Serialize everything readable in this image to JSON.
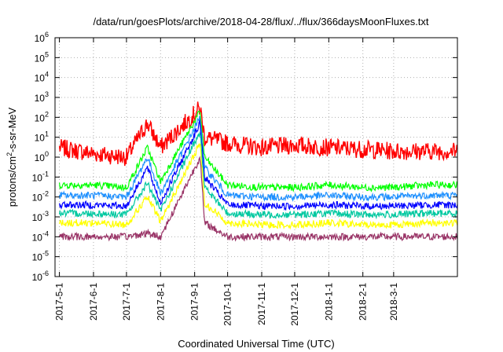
{
  "chart_data": {
    "type": "line",
    "title": "/data/run/goesPlots/archive/2018-04-28/flux/../flux/366daysMoonFluxes.txt",
    "xlabel": "Coordinated Universal Time (UTC)",
    "ylabel": "protons/cm²-s-sr-MeV",
    "ylabel_parts": {
      "main": "protons/cm",
      "sup": "2",
      "rest": "-s-sr-MeV"
    },
    "yscale": "log",
    "ylim": [
      1e-06,
      1000000.0
    ],
    "y_ticks": [
      {
        "base": "10",
        "exp": "-6"
      },
      {
        "base": "10",
        "exp": "-5"
      },
      {
        "base": "10",
        "exp": "-4"
      },
      {
        "base": "10",
        "exp": "-3"
      },
      {
        "base": "10",
        "exp": "-2"
      },
      {
        "base": "10",
        "exp": "-1"
      },
      {
        "base": "10",
        "exp": "0"
      },
      {
        "base": "10",
        "exp": "1"
      },
      {
        "base": "10",
        "exp": "2"
      },
      {
        "base": "10",
        "exp": "3"
      },
      {
        "base": "10",
        "exp": "4"
      },
      {
        "base": "10",
        "exp": "5"
      },
      {
        "base": "10",
        "exp": "6"
      }
    ],
    "xlim": [
      "2017-04-27",
      "2018-04-28"
    ],
    "x_ticks": [
      "2017-5-1",
      "2017-6-1",
      "2017-7-1",
      "2017-8-1",
      "2017-9-1",
      "2017-10-1",
      "2017-11-1",
      "2017-12-1",
      "2018-1-1",
      "2018-2-1",
      "2018-3-1"
    ],
    "grid": true,
    "series": [
      {
        "color": "#ff0000",
        "x": [
          "2017-05-01",
          "2017-06-01",
          "2017-07-01",
          "2017-07-20",
          "2017-08-01",
          "2017-09-06",
          "2017-09-10",
          "2017-10-01",
          "2017-11-01",
          "2017-12-01",
          "2018-01-01",
          "2018-02-01",
          "2018-03-01",
          "2018-04-01",
          "2018-04-28"
        ],
        "y": [
          3,
          1.5,
          1,
          50,
          3,
          300,
          10,
          5,
          3,
          4,
          3,
          2.5,
          2,
          2,
          2
        ]
      },
      {
        "color": "#00ff00",
        "x": [
          "2017-05-01",
          "2017-06-01",
          "2017-07-01",
          "2017-07-20",
          "2017-08-01",
          "2017-09-06",
          "2017-09-10",
          "2017-10-01",
          "2017-11-01",
          "2017-12-01",
          "2018-01-01",
          "2018-02-01",
          "2018-03-01",
          "2018-04-01",
          "2018-04-28"
        ],
        "y": [
          0.04,
          0.04,
          0.03,
          3,
          0.06,
          200,
          1,
          0.04,
          0.03,
          0.03,
          0.04,
          0.03,
          0.03,
          0.04,
          0.04
        ]
      },
      {
        "color": "#1e90ff",
        "x": [
          "2017-05-01",
          "2017-06-01",
          "2017-07-01",
          "2017-07-20",
          "2017-08-01",
          "2017-09-06",
          "2017-09-10",
          "2017-10-01",
          "2017-11-01",
          "2017-12-01",
          "2018-01-01",
          "2018-02-01",
          "2018-03-01",
          "2018-04-01",
          "2018-04-28"
        ],
        "y": [
          0.012,
          0.012,
          0.01,
          1,
          0.015,
          100,
          0.3,
          0.012,
          0.01,
          0.01,
          0.012,
          0.01,
          0.01,
          0.012,
          0.012
        ]
      },
      {
        "color": "#0000ff",
        "x": [
          "2017-05-01",
          "2017-06-01",
          "2017-07-01",
          "2017-07-20",
          "2017-08-01",
          "2017-09-06",
          "2017-09-10",
          "2017-10-01",
          "2017-11-01",
          "2017-12-01",
          "2018-01-01",
          "2018-02-01",
          "2018-03-01",
          "2018-04-01",
          "2018-04-28"
        ],
        "y": [
          0.004,
          0.004,
          0.0035,
          0.3,
          0.005,
          50,
          0.1,
          0.004,
          0.0035,
          0.0035,
          0.004,
          0.0035,
          0.0035,
          0.004,
          0.004
        ]
      },
      {
        "color": "#00c8a0",
        "x": [
          "2017-05-01",
          "2017-06-01",
          "2017-07-01",
          "2017-07-20",
          "2017-08-01",
          "2017-09-06",
          "2017-09-10",
          "2017-10-01",
          "2017-11-01",
          "2017-12-01",
          "2018-01-01",
          "2018-02-01",
          "2018-03-01",
          "2018-04-01",
          "2018-04-28"
        ],
        "y": [
          0.0015,
          0.0015,
          0.0013,
          0.05,
          0.002,
          20,
          0.03,
          0.0015,
          0.0013,
          0.0013,
          0.0015,
          0.0013,
          0.0013,
          0.0015,
          0.0015
        ]
      },
      {
        "color": "#ffff00",
        "x": [
          "2017-05-01",
          "2017-06-01",
          "2017-07-01",
          "2017-07-20",
          "2017-08-01",
          "2017-09-06",
          "2017-09-10",
          "2017-10-01",
          "2017-11-01",
          "2017-12-01",
          "2018-01-01",
          "2018-02-01",
          "2018-03-01",
          "2018-04-01",
          "2018-04-28"
        ],
        "y": [
          0.0005,
          0.0005,
          0.0004,
          0.01,
          0.0006,
          5,
          0.005,
          0.0005,
          0.0004,
          0.0004,
          0.0005,
          0.0004,
          0.0004,
          0.0005,
          0.0005
        ]
      },
      {
        "color": "#993366",
        "x": [
          "2017-05-01",
          "2017-06-01",
          "2017-07-01",
          "2017-07-20",
          "2017-08-01",
          "2017-09-06",
          "2017-09-10",
          "2017-10-01",
          "2017-11-01",
          "2017-12-01",
          "2018-01-01",
          "2018-02-01",
          "2018-03-01",
          "2018-04-01",
          "2018-04-28"
        ],
        "y": [
          0.0001,
          0.0001,
          0.0001,
          0.00015,
          0.0001,
          1,
          0.0005,
          0.0001,
          0.0001,
          0.0001,
          0.0001,
          0.0001,
          0.0001,
          0.0001,
          0.0001
        ]
      }
    ]
  }
}
